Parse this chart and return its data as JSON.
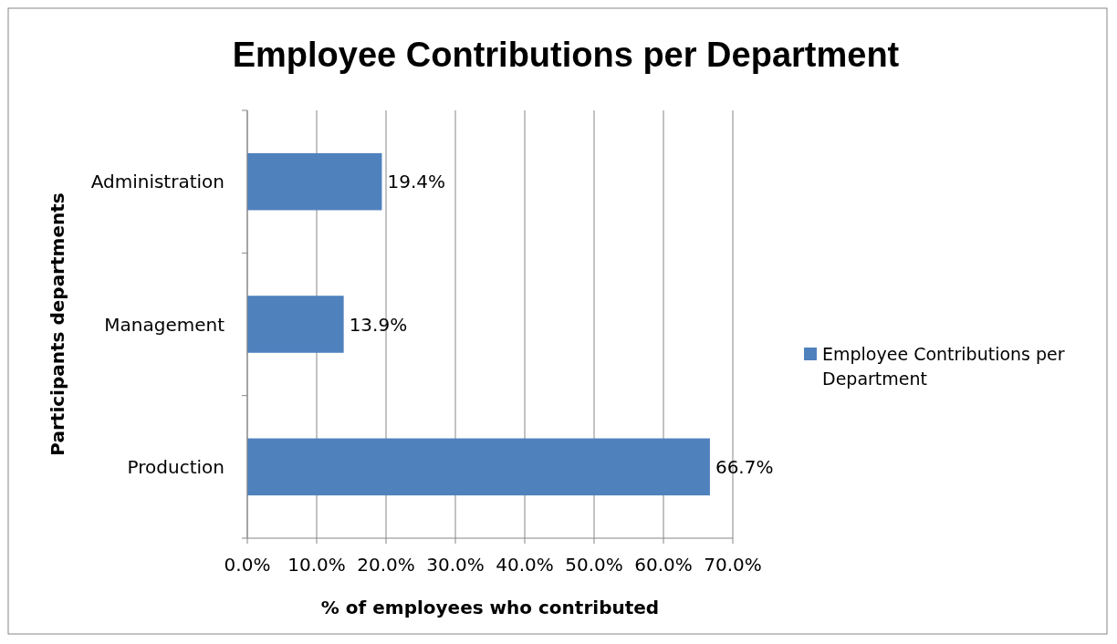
{
  "chart_data": {
    "type": "bar",
    "orientation": "horizontal",
    "title": "Employee Contributions per Department",
    "xlabel": "% of employees who contributed",
    "ylabel": "Participants departments",
    "categories": [
      "Administration",
      "Management",
      "Production"
    ],
    "series": [
      {
        "name": "Employee Contributions per Department",
        "color": "#4f81bd",
        "values": [
          19.4,
          13.9,
          66.7
        ],
        "value_labels": [
          "19.4%",
          "13.9%",
          "66.7%"
        ]
      }
    ],
    "xlim": [
      0,
      70
    ],
    "xticks": [
      {
        "value": 0,
        "label": "0.0%"
      },
      {
        "value": 10,
        "label": "10.0%"
      },
      {
        "value": 20,
        "label": "20.0%"
      },
      {
        "value": 30,
        "label": "30.0%"
      },
      {
        "value": 40,
        "label": "40.0%"
      },
      {
        "value": 50,
        "label": "50.0%"
      },
      {
        "value": 60,
        "label": "60.0%"
      },
      {
        "value": 70,
        "label": "70.0%"
      }
    ],
    "grid": "x",
    "legend": "right"
  }
}
